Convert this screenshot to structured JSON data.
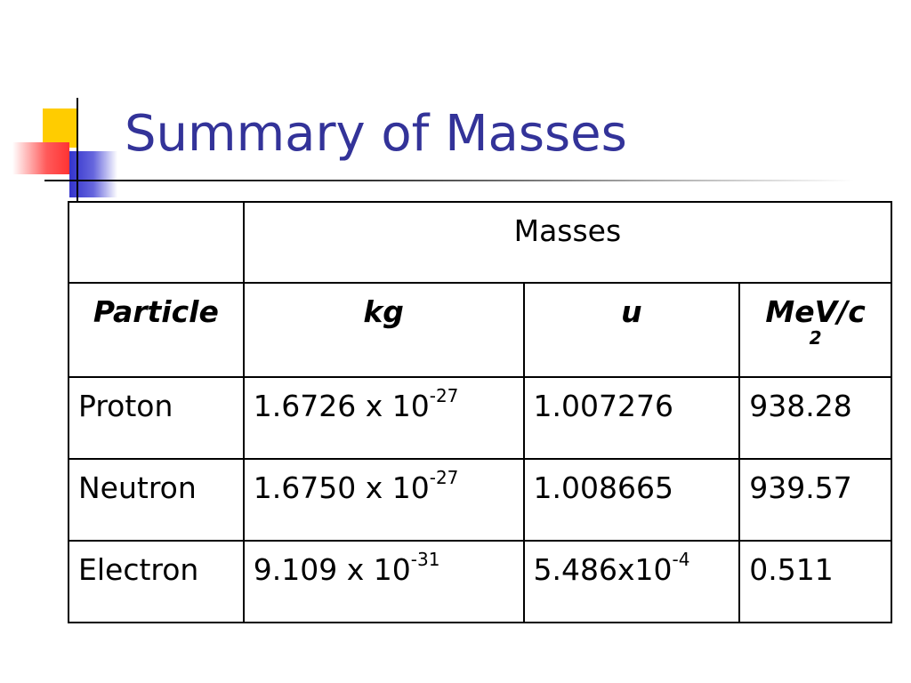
{
  "title": "Summary of Masses",
  "table": {
    "group_header": "Masses",
    "headers": [
      "Particle",
      "kg",
      "u",
      {
        "base": "MeV/c",
        "sup": "2"
      }
    ],
    "rows": [
      [
        "Proton",
        {
          "base": "1.6726 x 10",
          "sup": "-27"
        },
        "1.007276",
        "938.28"
      ],
      [
        "Neutron",
        {
          "base": "1.6750 x 10",
          "sup": "-27"
        },
        "1.008665",
        "939.57"
      ],
      [
        "Electron",
        {
          "base": "9.109 x 10",
          "sup": "-31"
        },
        {
          "base": "5.486x10",
          "sup": "-4"
        },
        "0.511"
      ]
    ]
  }
}
